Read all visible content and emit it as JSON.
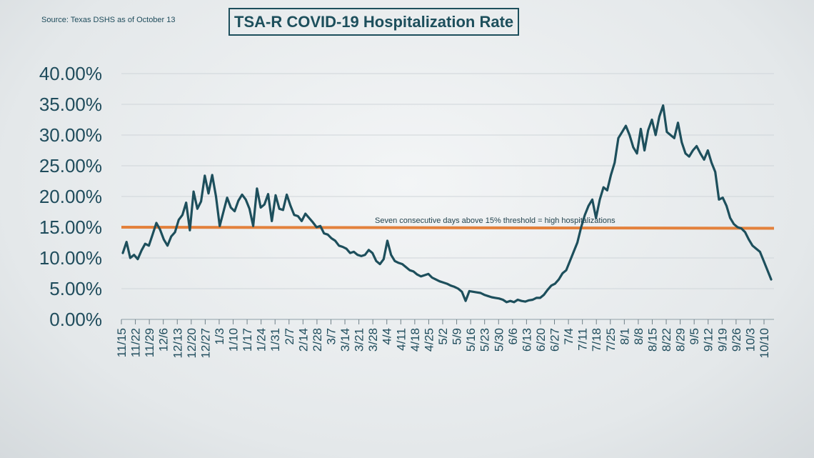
{
  "source": "Source: Texas DSHS as of October 13",
  "title": "TSA-R COVID-19 Hospitalization Rate",
  "colors": {
    "line": "#1d4f5c",
    "threshold": "#e3813c",
    "grid": "#cfd5d9",
    "text": "#1f4c5c"
  },
  "chart_data": {
    "type": "line",
    "title": "TSA-R COVID-19 Hospitalization Rate",
    "ylim": [
      0,
      40
    ],
    "yticks": [
      "0.00%",
      "5.00%",
      "10.00%",
      "15.00%",
      "20.00%",
      "25.00%",
      "30.00%",
      "35.00%",
      "40.00%"
    ],
    "grid": true,
    "xticks": [
      "11/15",
      "11/22",
      "11/29",
      "12/6",
      "12/13",
      "12/20",
      "12/27",
      "1/3",
      "1/10",
      "1/17",
      "1/24",
      "1/31",
      "2/7",
      "2/14",
      "2/28",
      "3/7",
      "3/14",
      "3/21",
      "3/28",
      "4/4",
      "4/11",
      "4/18",
      "4/25",
      "5/2",
      "5/9",
      "5/16",
      "5/23",
      "5/30",
      "6/6",
      "6/13",
      "6/20",
      "6/27",
      "7/4",
      "7/11",
      "7/18",
      "7/25",
      "8/1",
      "8/8",
      "8/15",
      "8/22",
      "8/29",
      "9/5",
      "9/12",
      "9/19",
      "9/26",
      "10/3",
      "10/10"
    ],
    "threshold": {
      "value": 15,
      "label": "Seven consecutive days above 15% threshold = high hospitalizations"
    },
    "series": [
      {
        "values": [
          10.8,
          12.6,
          10.0,
          10.5,
          9.8,
          11.2,
          12.3,
          12.0,
          13.8,
          15.7,
          14.6,
          13.0,
          12.0,
          13.5,
          14.2,
          16.2,
          17.0,
          19.0,
          14.5,
          20.8,
          18.0,
          19.2,
          23.4,
          20.5,
          23.5,
          20.0,
          15.2,
          17.5,
          19.8,
          18.2,
          17.6,
          19.3,
          20.3,
          19.5,
          18.0,
          15.2,
          21.3,
          18.2,
          18.7,
          20.4,
          16.0,
          20.2,
          18.0,
          17.8,
          20.3,
          18.5,
          17.0,
          16.8,
          16.0,
          17.2,
          16.5,
          15.8,
          15.0,
          15.2,
          14.0,
          13.8,
          13.2,
          12.8,
          12.0,
          11.8,
          11.5,
          10.8,
          11.0,
          10.5,
          10.3,
          10.5,
          11.3,
          10.8,
          9.5,
          9.0,
          9.8,
          12.8,
          10.5,
          9.5,
          9.2,
          9.0,
          8.5,
          8.0,
          7.8,
          7.3,
          7.0,
          7.2,
          7.4,
          6.8,
          6.5,
          6.2,
          6.0,
          5.8,
          5.5,
          5.3,
          5.0,
          4.5,
          3.0,
          4.6,
          4.5,
          4.4,
          4.3,
          4.0,
          3.8,
          3.6,
          3.5,
          3.4,
          3.2,
          2.8,
          3.0,
          2.8,
          3.2,
          3.0,
          2.9,
          3.1,
          3.2,
          3.5,
          3.5,
          4.0,
          4.8,
          5.5,
          5.8,
          6.5,
          7.5,
          8.0,
          9.5,
          11.0,
          12.5,
          15.0,
          17.0,
          18.5,
          19.5,
          16.5,
          19.5,
          21.5,
          21.0,
          23.5,
          25.5,
          29.5,
          30.5,
          31.5,
          30.0,
          28.0,
          27.0,
          31.0,
          27.5,
          30.8,
          32.5,
          30.0,
          33.0,
          34.8,
          30.5,
          30.0,
          29.5,
          32.0,
          28.8,
          27.0,
          26.5,
          27.5,
          28.2,
          27.0,
          26.0,
          27.5,
          25.5,
          24.0,
          19.5,
          19.8,
          18.5,
          16.5,
          15.5,
          15.0,
          14.8,
          14.2,
          13.0,
          12.0,
          11.5,
          11.0,
          9.5,
          8.0,
          6.5
        ]
      }
    ]
  }
}
